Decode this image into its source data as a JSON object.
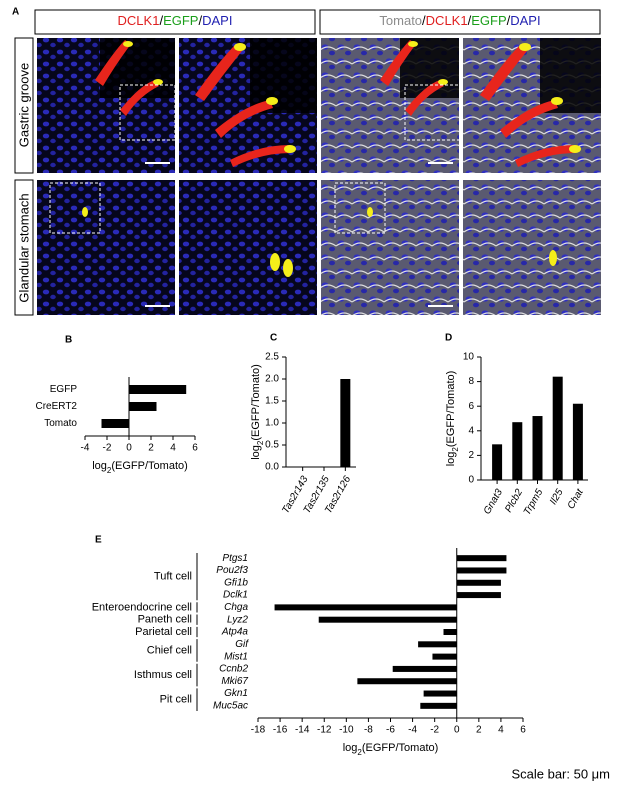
{
  "image_panel": {
    "label": "A",
    "headers": [
      [
        {
          "text": "DCLK1",
          "color": "#e01e1e"
        },
        {
          "text": "/",
          "color": "#000000"
        },
        {
          "text": "EGFP",
          "color": "#1a9e1a"
        },
        {
          "text": "/",
          "color": "#000000"
        },
        {
          "text": "DAPI",
          "color": "#1f1fb0"
        }
      ],
      [
        {
          "text": "Tomato",
          "color": "#8c8c8c"
        },
        {
          "text": "/",
          "color": "#000000"
        },
        {
          "text": "DCLK1",
          "color": "#e01e1e"
        },
        {
          "text": "/",
          "color": "#000000"
        },
        {
          "text": "EGFP",
          "color": "#1a9e1a"
        },
        {
          "text": "/",
          "color": "#000000"
        },
        {
          "text": "DAPI",
          "color": "#1f1fb0"
        }
      ]
    ],
    "row_labels": [
      "Gastric groove",
      "Glandular stomach"
    ]
  },
  "chart_data": [
    {
      "type": "barh",
      "label": "B",
      "categories": [
        "EGFP",
        "CreERT2",
        "Tomato"
      ],
      "values": [
        5.2,
        2.5,
        -2.5
      ],
      "color": "#000000",
      "xlim": [
        -4,
        6
      ],
      "xticks": [
        -4,
        -2,
        0,
        2,
        4,
        6
      ],
      "xlabel": [
        "log",
        "2",
        "(EGFP/Tomato)"
      ]
    },
    {
      "type": "bar",
      "label": "C",
      "categories": [
        "Tas2r143",
        "Tas2r135",
        "Tas2r126"
      ],
      "values": [
        0,
        0,
        2.0
      ],
      "color": "#000000",
      "ylim": [
        0,
        2.5
      ],
      "yticks": [
        {
          "value": 0,
          "label": "0.0"
        },
        {
          "value": 0.5,
          "label": "0.5"
        },
        {
          "value": 1,
          "label": "1.0"
        },
        {
          "value": 1.5,
          "label": "1.5"
        },
        {
          "value": 2,
          "label": "2.0"
        },
        {
          "value": 2.5,
          "label": "2.5"
        }
      ],
      "ylabel": [
        "log",
        "2",
        "(EGFP/Tomato)"
      ]
    },
    {
      "type": "bar",
      "label": "D",
      "categories": [
        "Gnat3",
        "Plcb2",
        "Trpm5",
        "Il25",
        "Chat"
      ],
      "values": [
        2.9,
        4.7,
        5.2,
        8.4,
        6.2
      ],
      "color": "#000000",
      "ylim": [
        0,
        10
      ],
      "yticks": [
        0,
        2,
        4,
        6,
        8,
        10
      ],
      "ylabel": [
        "log",
        "2",
        "(EGFP/Tomato)"
      ]
    },
    {
      "type": "barh",
      "label": "E",
      "color": "#000000",
      "xlim": [
        -18,
        6
      ],
      "xticks": [
        -18,
        -16,
        -14,
        -12,
        -10,
        -8,
        -6,
        -4,
        -2,
        0,
        2,
        4,
        6
      ],
      "xlabel": [
        "log",
        "2",
        "(EGFP/Tomato)"
      ],
      "groups": [
        {
          "name": "Tuft cell",
          "categories": [
            "Ptgs1",
            "Pou2f3",
            "Gfi1b",
            "Dclk1"
          ],
          "values": [
            4.5,
            4.5,
            4.0,
            4.0
          ]
        },
        {
          "name": "Enteroendocrine cell",
          "categories": [
            "Chga"
          ],
          "values": [
            -16.5
          ]
        },
        {
          "name": "Paneth cell",
          "categories": [
            "Lyz2"
          ],
          "values": [
            -12.5
          ]
        },
        {
          "name": "Parietal cell",
          "categories": [
            "Atp4a"
          ],
          "values": [
            -1.2
          ]
        },
        {
          "name": "Chief cell",
          "categories": [
            "Gif",
            "Mist1"
          ],
          "values": [
            -3.5,
            -2.2
          ]
        },
        {
          "name": "Isthmus cell",
          "categories": [
            "Ccnb2",
            "Mki67"
          ],
          "values": [
            -5.8,
            -9.0
          ]
        },
        {
          "name": "Pit cell",
          "categories": [
            "Gkn1",
            "Muc5ac"
          ],
          "values": [
            -3.0,
            -3.3
          ]
        }
      ]
    }
  ],
  "footer": "Scale bar: 50 μm"
}
